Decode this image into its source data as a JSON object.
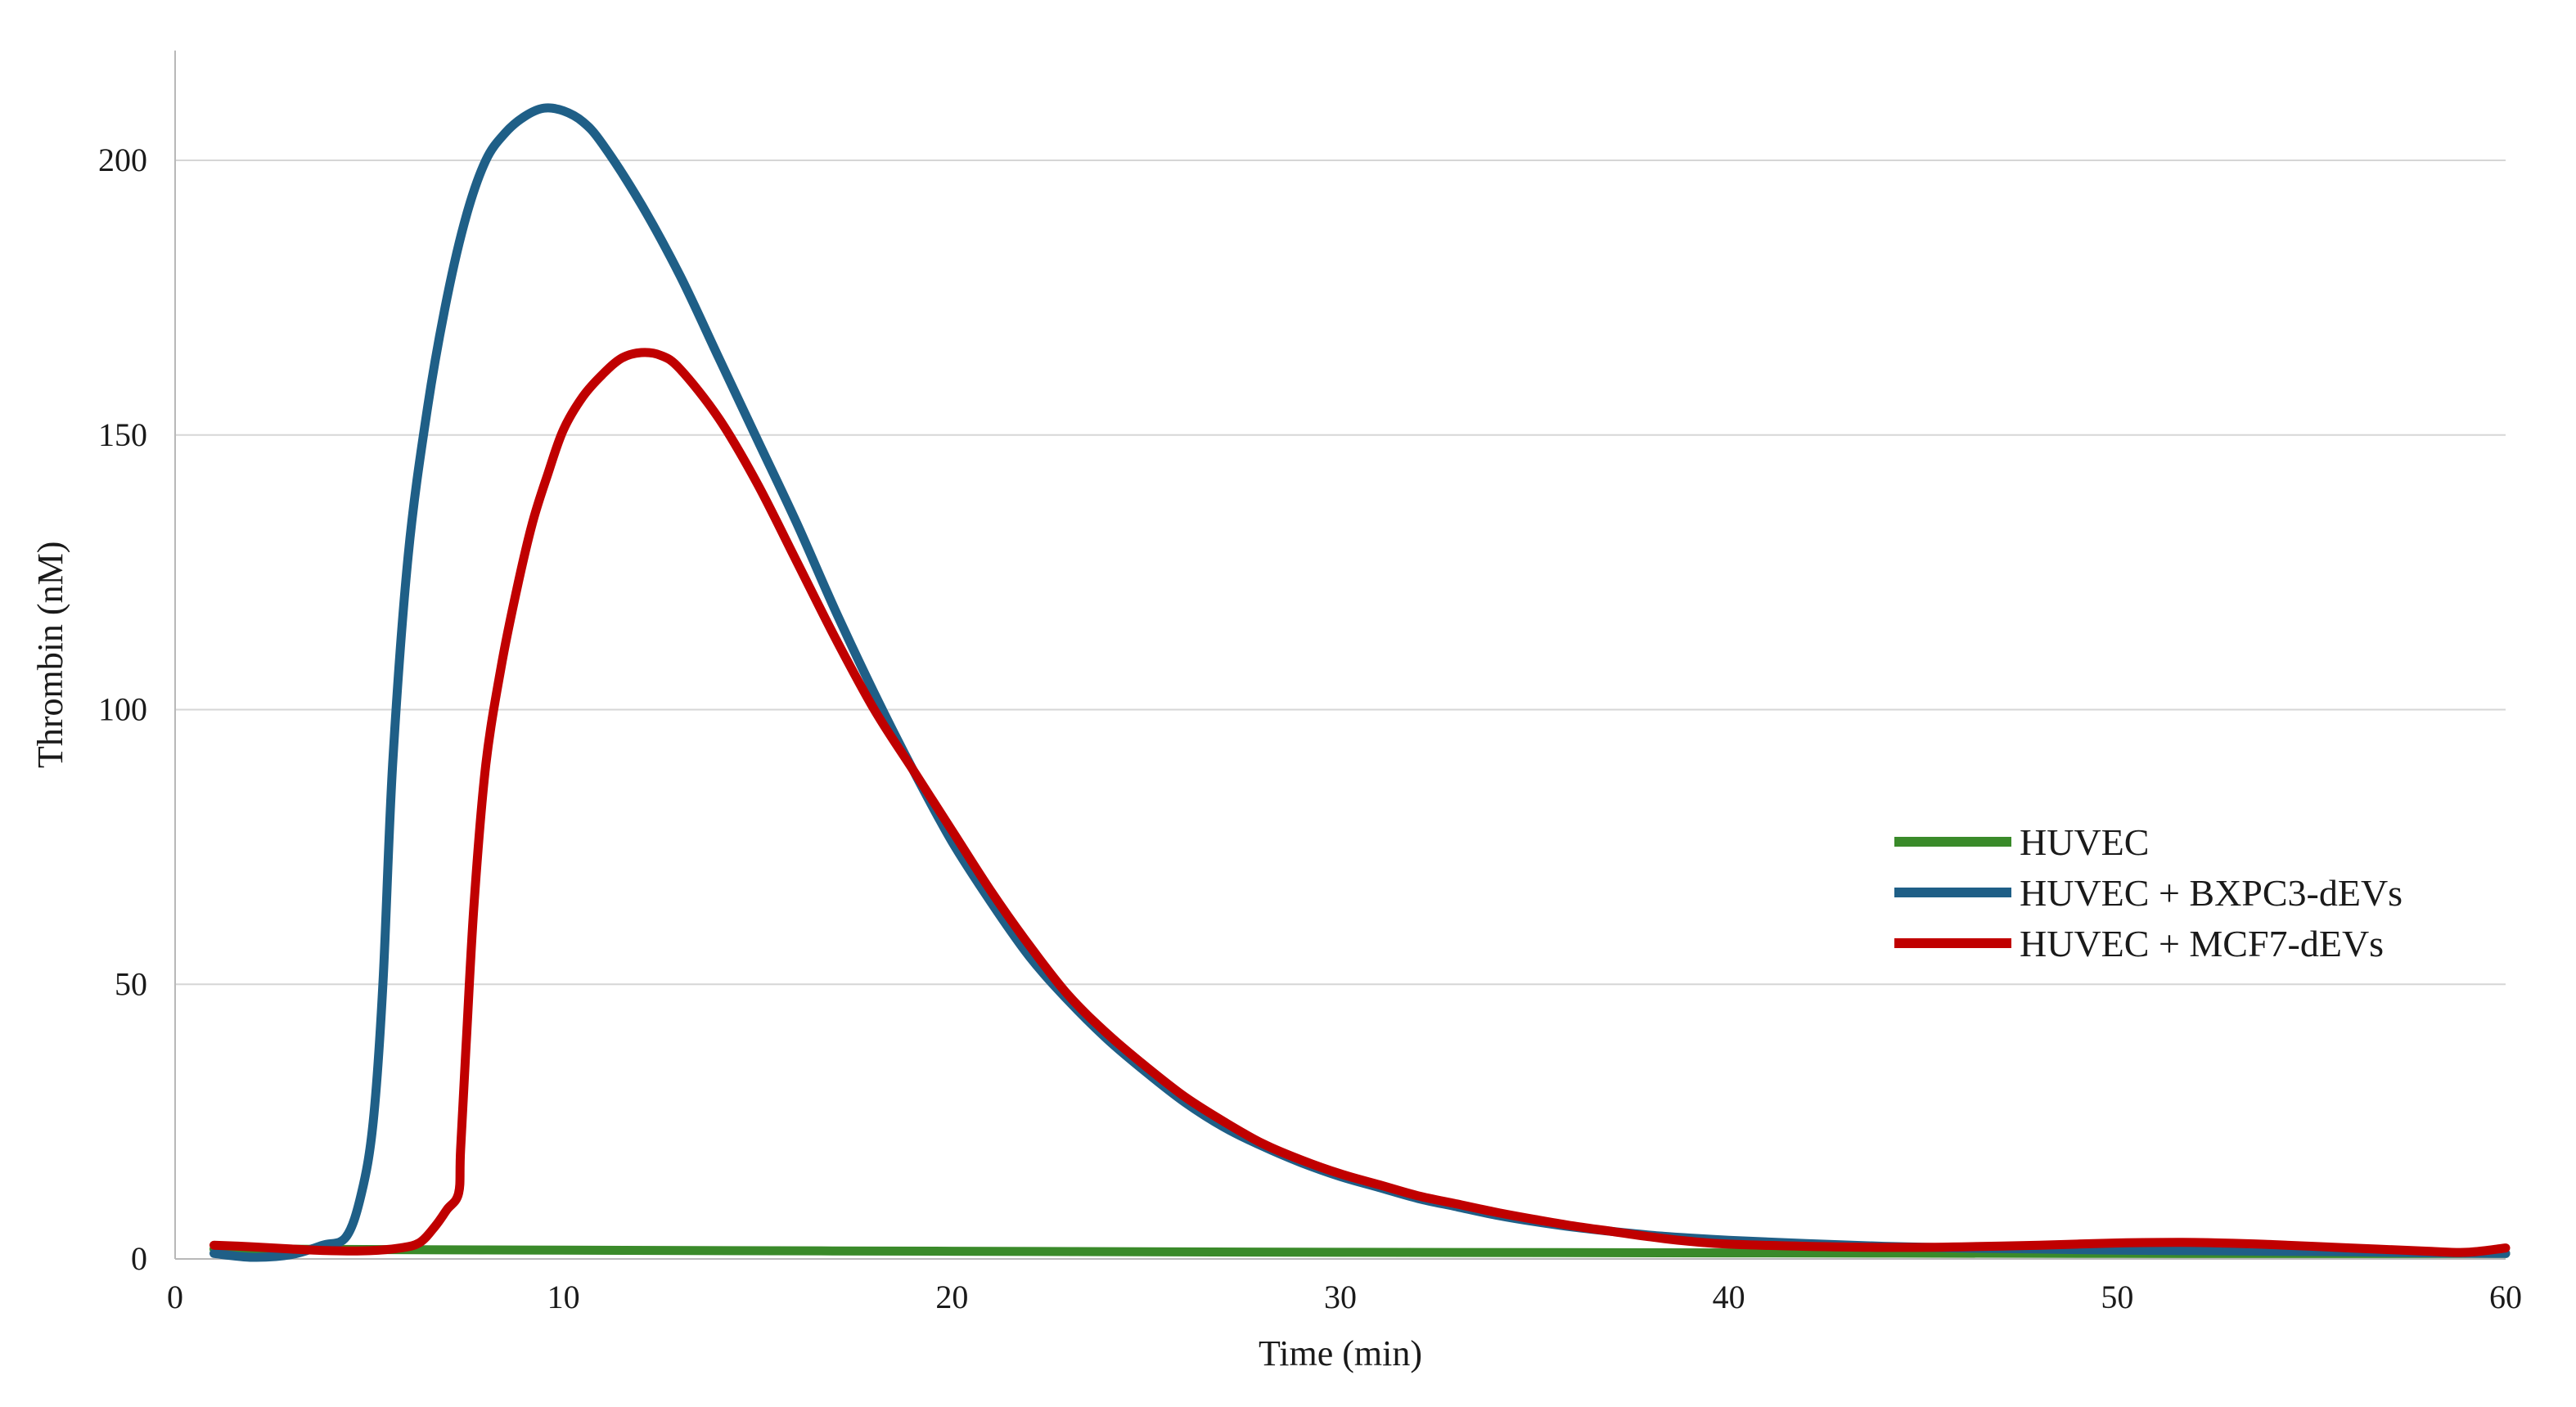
{
  "chart_data": {
    "type": "line",
    "title": "",
    "xlabel": "Time (min)",
    "ylabel": "Thrombin (nM)",
    "xlim": [
      0,
      60
    ],
    "ylim": [
      0,
      220
    ],
    "x_ticks": [
      0,
      10,
      20,
      30,
      40,
      50,
      60
    ],
    "y_ticks": [
      0,
      50,
      100,
      150,
      200
    ],
    "grid": "horizontal",
    "legend_position": "right",
    "series": [
      {
        "name": "HUVEC",
        "color": "#3a8a2a",
        "points": [
          [
            1,
            1.8
          ],
          [
            10,
            1.6
          ],
          [
            20,
            1.4
          ],
          [
            30,
            1.2
          ],
          [
            40,
            1.1
          ],
          [
            50,
            1.0
          ],
          [
            60,
            1.0
          ]
        ]
      },
      {
        "name": "HUVEC + BXPC3-dEVs",
        "color": "#1f5f87",
        "points": [
          [
            1,
            1
          ],
          [
            2,
            0.3
          ],
          [
            3,
            0.8
          ],
          [
            3.8,
            2.5
          ],
          [
            4.4,
            4
          ],
          [
            4.8,
            12
          ],
          [
            5.1,
            25
          ],
          [
            5.35,
            50
          ],
          [
            5.6,
            90
          ],
          [
            6,
            128
          ],
          [
            6.5,
            155
          ],
          [
            7,
            175
          ],
          [
            7.5,
            190
          ],
          [
            8,
            200
          ],
          [
            8.5,
            205
          ],
          [
            9,
            208
          ],
          [
            9.5,
            209.5
          ],
          [
            10,
            209
          ],
          [
            10.5,
            207
          ],
          [
            11,
            203
          ],
          [
            12,
            192
          ],
          [
            13,
            179
          ],
          [
            14,
            164
          ],
          [
            15,
            149
          ],
          [
            16,
            134
          ],
          [
            17,
            118
          ],
          [
            18,
            103
          ],
          [
            19,
            89
          ],
          [
            20,
            76
          ],
          [
            21,
            65
          ],
          [
            22,
            55
          ],
          [
            23,
            47
          ],
          [
            24,
            40
          ],
          [
            25,
            34
          ],
          [
            26,
            28.5
          ],
          [
            27,
            24
          ],
          [
            28,
            20.5
          ],
          [
            29,
            17.5
          ],
          [
            30,
            15
          ],
          [
            31,
            13
          ],
          [
            32,
            11
          ],
          [
            33,
            9.5
          ],
          [
            34,
            8
          ],
          [
            35,
            6.8
          ],
          [
            36,
            5.8
          ],
          [
            37,
            5
          ],
          [
            38,
            4.3
          ],
          [
            39,
            3.8
          ],
          [
            40,
            3.4
          ],
          [
            42,
            2.8
          ],
          [
            44,
            2.3
          ],
          [
            46,
            2
          ],
          [
            48,
            1.8
          ],
          [
            50,
            1.6
          ],
          [
            52,
            1.5
          ],
          [
            54,
            1.4
          ],
          [
            56,
            1.3
          ],
          [
            58,
            1.1
          ],
          [
            60,
            1
          ]
        ]
      },
      {
        "name": "HUVEC + MCF7-dEVs",
        "color": "#c00000",
        "points": [
          [
            1,
            2.5
          ],
          [
            2,
            2.2
          ],
          [
            3,
            1.8
          ],
          [
            4,
            1.5
          ],
          [
            5,
            1.5
          ],
          [
            5.8,
            2
          ],
          [
            6.3,
            3
          ],
          [
            6.7,
            6
          ],
          [
            7,
            9
          ],
          [
            7.3,
            12
          ],
          [
            7.35,
            20
          ],
          [
            7.5,
            40
          ],
          [
            7.7,
            65
          ],
          [
            8,
            90
          ],
          [
            8.4,
            108
          ],
          [
            8.8,
            122
          ],
          [
            9.2,
            134
          ],
          [
            9.6,
            143
          ],
          [
            10,
            151
          ],
          [
            10.5,
            157
          ],
          [
            11,
            161
          ],
          [
            11.5,
            164
          ],
          [
            12,
            165
          ],
          [
            12.5,
            164.5
          ],
          [
            13,
            162
          ],
          [
            14,
            153
          ],
          [
            15,
            141
          ],
          [
            16,
            127
          ],
          [
            17,
            113
          ],
          [
            18,
            100
          ],
          [
            19,
            89
          ],
          [
            20,
            78
          ],
          [
            21,
            67
          ],
          [
            22,
            57
          ],
          [
            23,
            48
          ],
          [
            24,
            41
          ],
          [
            25,
            35
          ],
          [
            26,
            29.5
          ],
          [
            27,
            25
          ],
          [
            28,
            21
          ],
          [
            29,
            18
          ],
          [
            30,
            15.5
          ],
          [
            31,
            13.5
          ],
          [
            32,
            11.5
          ],
          [
            33,
            10
          ],
          [
            34,
            8.5
          ],
          [
            35,
            7.2
          ],
          [
            36,
            6
          ],
          [
            37,
            5
          ],
          [
            38,
            4
          ],
          [
            39,
            3.2
          ],
          [
            40,
            2.7
          ],
          [
            42,
            2.3
          ],
          [
            44,
            2.1
          ],
          [
            46,
            2.2
          ],
          [
            48,
            2.5
          ],
          [
            50,
            2.9
          ],
          [
            52,
            3
          ],
          [
            54,
            2.6
          ],
          [
            56,
            2
          ],
          [
            58,
            1.4
          ],
          [
            59,
            1.2
          ],
          [
            60,
            2
          ]
        ]
      }
    ]
  }
}
